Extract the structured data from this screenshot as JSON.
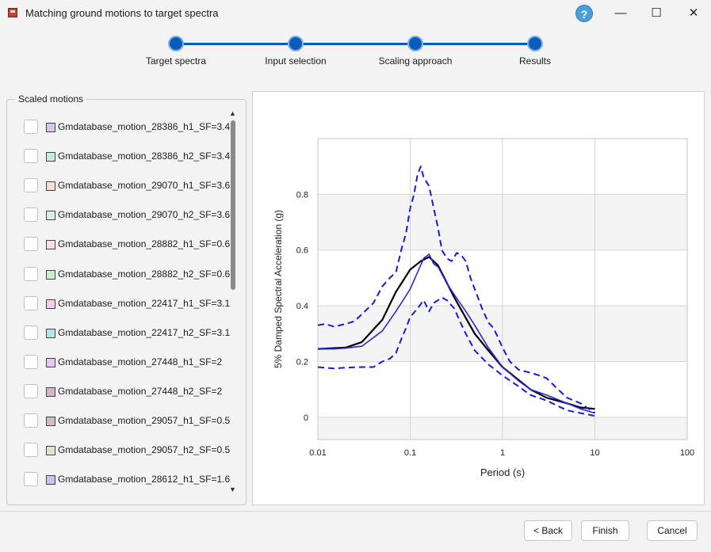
{
  "window": {
    "title": "Matching ground motions to target spectra",
    "help_glyph": "?",
    "minimize_glyph": "—",
    "maximize_glyph": "☐",
    "close_glyph": "✕"
  },
  "steps": [
    {
      "label": "Target spectra"
    },
    {
      "label": "Input selection"
    },
    {
      "label": "Scaling approach"
    },
    {
      "label": "Results"
    }
  ],
  "sidebar": {
    "group_title": "Scaled motions",
    "items": [
      {
        "label": "Gmdatabase_motion_28386_h1_SF=3.4",
        "color": "#d9c6f2",
        "checked": false
      },
      {
        "label": "Gmdatabase_motion_28386_h2_SF=3.4",
        "color": "#c7ebdc",
        "checked": false
      },
      {
        "label": "Gmdatabase_motion_29070_h1_SF=3.6",
        "color": "#f6e0d2",
        "checked": false
      },
      {
        "label": "Gmdatabase_motion_29070_h2_SF=3.6",
        "color": "#d7efe6",
        "checked": false
      },
      {
        "label": "Gmdatabase_motion_28882_h1_SF=0.6",
        "color": "#f7dfe3",
        "checked": false
      },
      {
        "label": "Gmdatabase_motion_28882_h2_SF=0.6",
        "color": "#c9f1c9",
        "checked": false
      },
      {
        "label": "Gmdatabase_motion_22417_h1_SF=3.1",
        "color": "#f8cdea",
        "checked": false
      },
      {
        "label": "Gmdatabase_motion_22417_h2_SF=3.1",
        "color": "#b9e2e6",
        "checked": false
      },
      {
        "label": "Gmdatabase_motion_27448_h1_SF=2",
        "color": "#e6c6f2",
        "checked": false
      },
      {
        "label": "Gmdatabase_motion_27448_h2_SF=2",
        "color": "#d3b7c8",
        "checked": false
      },
      {
        "label": "Gmdatabase_motion_29057_h1_SF=0.5",
        "color": "#cdbdbd",
        "checked": false
      },
      {
        "label": "Gmdatabase_motion_29057_h2_SF=0.5",
        "color": "#dde5cf",
        "checked": false
      },
      {
        "label": "Gmdatabase_motion_28612_h1_SF=1.6",
        "color": "#c3c6f2",
        "checked": false
      }
    ],
    "scroll_up_glyph": "▲",
    "scroll_down_glyph": "▼"
  },
  "chart_data": {
    "type": "line",
    "xlabel": "Period (s)",
    "ylabel": "5% Damped Spectral Acceleration (g)",
    "xscale": "log",
    "xlim": [
      0.01,
      100
    ],
    "ylim": [
      -0.08,
      1.0
    ],
    "xticks": [
      {
        "value": 0.01,
        "label": "0.01"
      },
      {
        "value": 0.1,
        "label": "0.1"
      },
      {
        "value": 1,
        "label": "1"
      },
      {
        "value": 10,
        "label": "10"
      },
      {
        "value": 100,
        "label": "100"
      }
    ],
    "yticks": [
      {
        "value": 0,
        "label": "0"
      },
      {
        "value": 0.2,
        "label": "0.2"
      },
      {
        "value": 0.4,
        "label": "0.4"
      },
      {
        "value": 0.6,
        "label": "0.6"
      },
      {
        "value": 0.8,
        "label": "0.8"
      }
    ],
    "grid": true,
    "alternating_bands": true,
    "series": [
      {
        "style": "solid",
        "color": "#000000",
        "x": [
          0.01,
          0.015,
          0.02,
          0.03,
          0.05,
          0.07,
          0.1,
          0.13,
          0.16,
          0.2,
          0.3,
          0.5,
          0.7,
          1,
          2,
          3,
          5,
          7,
          10
        ],
        "y": [
          0.245,
          0.248,
          0.25,
          0.27,
          0.35,
          0.45,
          0.53,
          0.56,
          0.575,
          0.545,
          0.43,
          0.3,
          0.24,
          0.18,
          0.1,
          0.07,
          0.05,
          0.035,
          0.03
        ]
      },
      {
        "style": "solid",
        "color": "#2a2ad8",
        "x": [
          0.01,
          0.015,
          0.02,
          0.03,
          0.05,
          0.07,
          0.1,
          0.12,
          0.14,
          0.16,
          0.18,
          0.2,
          0.25,
          0.3,
          0.4,
          0.5,
          0.7,
          1,
          1.5,
          2,
          3,
          5,
          7,
          10
        ],
        "y": [
          0.245,
          0.245,
          0.248,
          0.255,
          0.31,
          0.38,
          0.46,
          0.52,
          0.57,
          0.585,
          0.55,
          0.54,
          0.48,
          0.44,
          0.38,
          0.33,
          0.25,
          0.18,
          0.13,
          0.1,
          0.08,
          0.05,
          0.03,
          0.015
        ]
      },
      {
        "style": "dashed",
        "color": "#1a1ad8",
        "x": [
          0.01,
          0.012,
          0.015,
          0.02,
          0.025,
          0.03,
          0.04,
          0.05,
          0.06,
          0.07,
          0.08,
          0.09,
          0.1,
          0.11,
          0.12,
          0.13,
          0.14,
          0.16,
          0.18,
          0.2,
          0.22,
          0.25,
          0.28,
          0.32,
          0.36,
          0.4,
          0.45,
          0.5,
          0.6,
          0.7,
          0.8,
          1,
          1.2,
          1.5,
          2,
          2.5,
          3,
          4,
          5,
          7,
          10
        ],
        "y": [
          0.33,
          0.335,
          0.325,
          0.335,
          0.345,
          0.37,
          0.41,
          0.47,
          0.5,
          0.52,
          0.6,
          0.66,
          0.75,
          0.8,
          0.87,
          0.9,
          0.86,
          0.83,
          0.75,
          0.68,
          0.6,
          0.57,
          0.56,
          0.59,
          0.58,
          0.56,
          0.5,
          0.46,
          0.39,
          0.34,
          0.32,
          0.25,
          0.2,
          0.17,
          0.16,
          0.15,
          0.14,
          0.1,
          0.07,
          0.05,
          0.015
        ]
      },
      {
        "style": "dashed",
        "color": "#1a1ad8",
        "x": [
          0.01,
          0.015,
          0.02,
          0.03,
          0.04,
          0.05,
          0.06,
          0.07,
          0.08,
          0.09,
          0.1,
          0.12,
          0.14,
          0.16,
          0.18,
          0.2,
          0.22,
          0.25,
          0.3,
          0.35,
          0.4,
          0.5,
          0.7,
          1,
          1.5,
          2,
          3,
          4,
          5,
          7,
          10
        ],
        "y": [
          0.18,
          0.175,
          0.178,
          0.18,
          0.18,
          0.2,
          0.21,
          0.23,
          0.28,
          0.32,
          0.36,
          0.39,
          0.42,
          0.38,
          0.41,
          0.42,
          0.43,
          0.42,
          0.39,
          0.34,
          0.3,
          0.24,
          0.19,
          0.15,
          0.11,
          0.08,
          0.06,
          0.04,
          0.025,
          0.015,
          0.005
        ]
      }
    ]
  },
  "footer": {
    "back_label": "< Back",
    "finish_label": "Finish",
    "cancel_label": "Cancel"
  }
}
